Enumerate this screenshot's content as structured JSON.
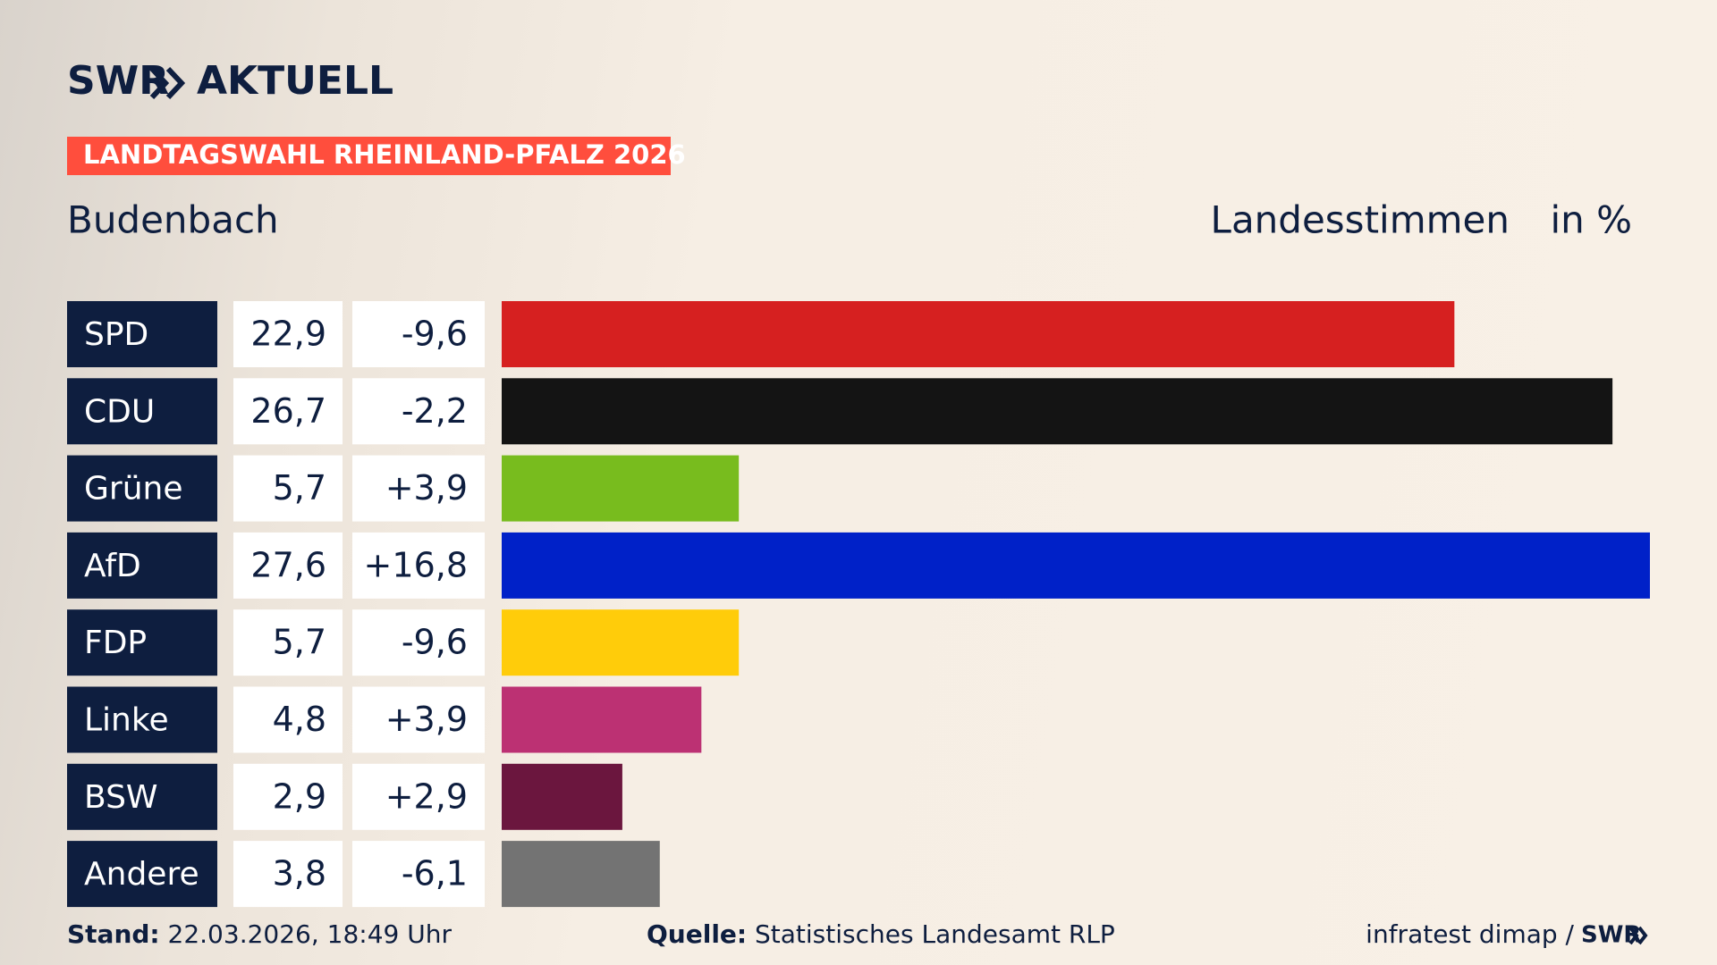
{
  "header": {
    "logo_left": "SWR",
    "logo_right": "AKTUELL",
    "badge": "LANDTAGSWAHL RHEINLAND-PFALZ 2026"
  },
  "chart_data": {
    "type": "bar",
    "title": "Budenbach",
    "value_header": "Landesstimmen",
    "unit": "in %",
    "categories": [
      "SPD",
      "CDU",
      "Grüne",
      "AfD",
      "FDP",
      "Linke",
      "BSW",
      "Andere"
    ],
    "values": [
      22.9,
      26.7,
      5.7,
      27.6,
      5.7,
      4.8,
      2.9,
      3.8
    ],
    "value_labels": [
      "22,9",
      "26,7",
      "5,7",
      "27,6",
      "5,7",
      "4,8",
      "2,9",
      "3,8"
    ],
    "changes": [
      -9.6,
      -2.2,
      3.9,
      16.8,
      -9.6,
      3.9,
      2.9,
      -6.1
    ],
    "change_labels": [
      "-9,6",
      "-2,2",
      "+3,9",
      "+16,8",
      "-9,6",
      "+3,9",
      "+2,9",
      "-6,1"
    ],
    "colors": [
      "#d62020",
      "#141414",
      "#78bc1e",
      "#0021c8",
      "#ffcc0a",
      "#bc3173",
      "#6b163e",
      "#737373"
    ],
    "xlim": [
      0,
      27.6
    ]
  },
  "footer": {
    "stand_label": "Stand:",
    "stand": "22.03.2026, 18:49 Uhr",
    "source_label": "Quelle:",
    "source": "Statistisches Landesamt RLP",
    "credit": "infratest dimap /",
    "credit_logo": "SWR"
  }
}
